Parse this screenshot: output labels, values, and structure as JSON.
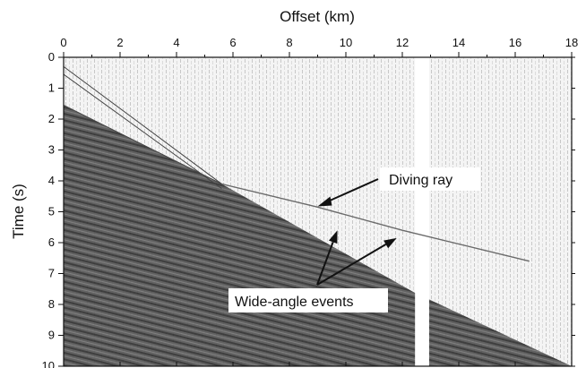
{
  "chart_data": {
    "type": "seismic-section",
    "xlabel": "Offset (km)",
    "ylabel": "Time (s)",
    "xlim": [
      0,
      18
    ],
    "ylim": [
      0,
      10
    ],
    "x_axis_position": "top",
    "y_inverted": true,
    "grid": false,
    "x_ticks": [
      0,
      2,
      4,
      6,
      8,
      10,
      12,
      14,
      16,
      18
    ],
    "y_ticks": [
      0,
      1,
      2,
      3,
      4,
      5,
      6,
      7,
      8,
      9,
      10
    ],
    "gap_trace_offset_km": [
      12.45,
      12.95
    ],
    "series": [
      {
        "name": "Diving ray",
        "x": [
          5.6,
          9.0,
          12.0,
          16.5
        ],
        "y": [
          4.1,
          4.85,
          5.6,
          6.6
        ]
      }
    ],
    "annotations": [
      {
        "text": "Diving ray",
        "target": {
          "x": 9.0,
          "y": 5.0
        }
      },
      {
        "text": "Wide-angle events",
        "targets": [
          {
            "x": 9.7,
            "y": 5.6
          },
          {
            "x": 11.8,
            "y": 5.85
          }
        ]
      }
    ],
    "colors": {
      "background": "#ffffff",
      "ink": "#111111",
      "wavefield_dark": "#3a3a3a",
      "wavefield_light": "#d6d6d6"
    }
  }
}
